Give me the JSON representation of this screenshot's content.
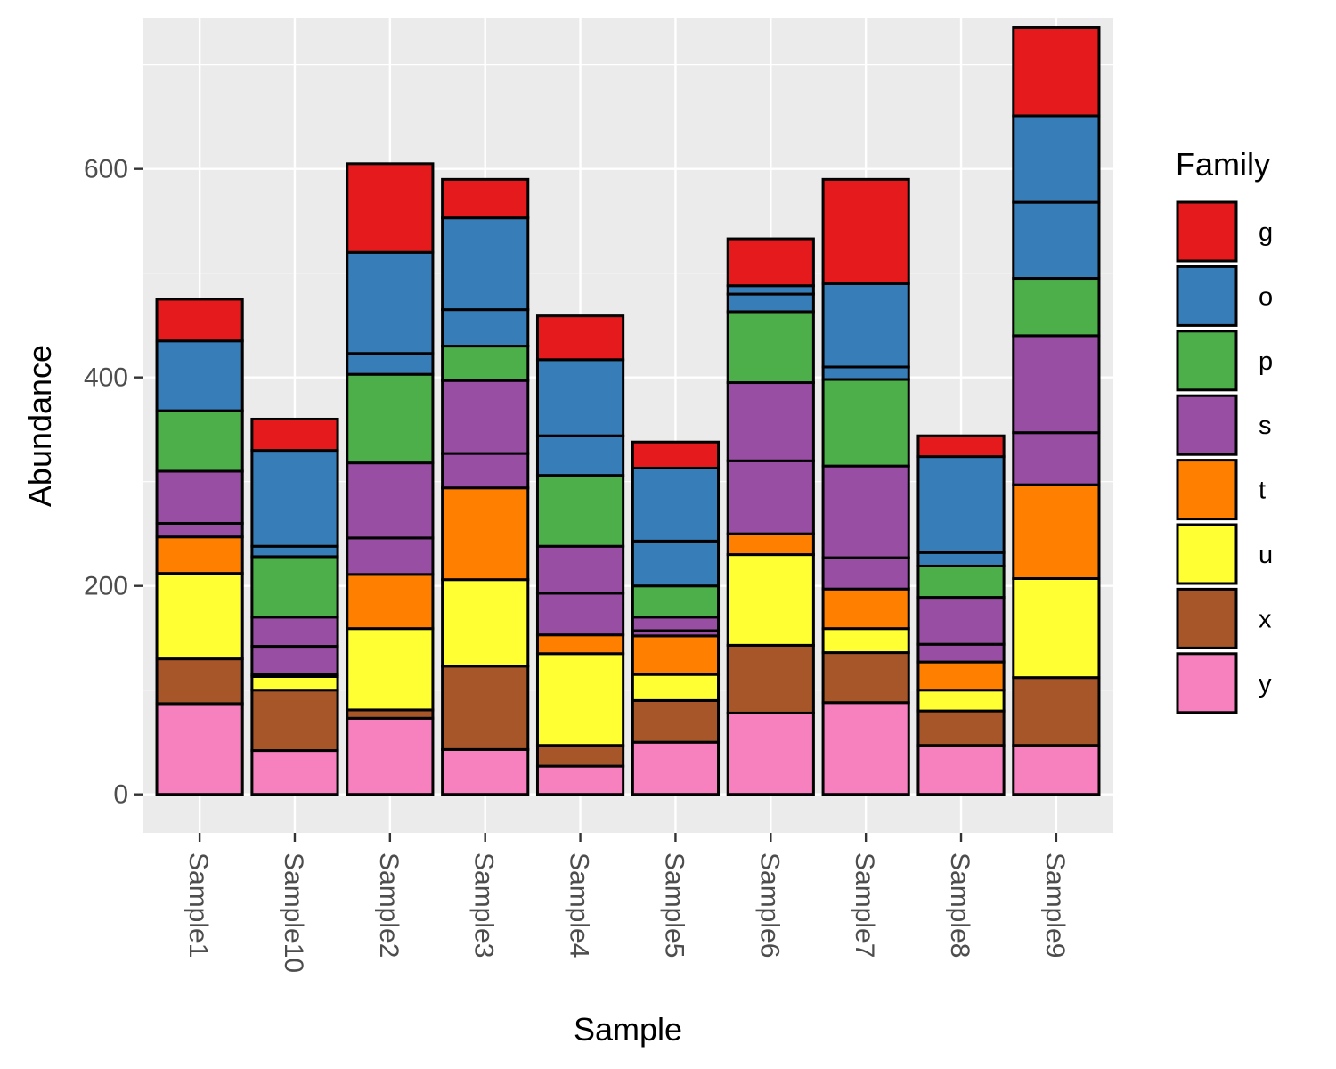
{
  "chart_data": {
    "type": "bar",
    "stacked": true,
    "xlabel": "Sample",
    "ylabel": "Abundance",
    "ylim": [
      -37,
      745
    ],
    "yticks": [
      0,
      200,
      400,
      600
    ],
    "grid": true,
    "legend": {
      "title": "Family",
      "placement": "right"
    },
    "categories": [
      "Sample1",
      "Sample10",
      "Sample2",
      "Sample3",
      "Sample4",
      "Sample5",
      "Sample6",
      "Sample7",
      "Sample8",
      "Sample9"
    ],
    "stack_order": [
      "y",
      "x",
      "u",
      "t",
      "s",
      "p",
      "o",
      "g"
    ],
    "series": [
      {
        "name": "g",
        "color": "#E41A1C",
        "segments": [
          [
            40
          ],
          [
            30
          ],
          [
            85
          ],
          [
            37
          ],
          [
            42
          ],
          [
            25
          ],
          [
            45
          ],
          [
            100
          ],
          [
            20
          ],
          [
            85
          ]
        ]
      },
      {
        "name": "o",
        "color": "#377EB8",
        "segments": [
          [
            67
          ],
          [
            10,
            92
          ],
          [
            20,
            97
          ],
          [
            35,
            88
          ],
          [
            38,
            73
          ],
          [
            43,
            70
          ],
          [
            17,
            8
          ],
          [
            12,
            80
          ],
          [
            13,
            92
          ],
          [
            73,
            83
          ]
        ]
      },
      {
        "name": "p",
        "color": "#4DAF4A",
        "segments": [
          [
            58
          ],
          [
            58
          ],
          [
            85
          ],
          [
            33
          ],
          [
            68
          ],
          [
            30
          ],
          [
            68
          ],
          [
            83
          ],
          [
            30
          ],
          [
            55
          ]
        ]
      },
      {
        "name": "s",
        "color": "#984EA3",
        "segments": [
          [
            13,
            50
          ],
          [
            27,
            28
          ],
          [
            35,
            72
          ],
          [
            33,
            70
          ],
          [
            40,
            45
          ],
          [
            5,
            13
          ],
          [
            70,
            75
          ],
          [
            30,
            88
          ],
          [
            17,
            45
          ],
          [
            50,
            93
          ]
        ]
      },
      {
        "name": "t",
        "color": "#FF7F00",
        "segments": [
          [
            35
          ],
          [
            2
          ],
          [
            52
          ],
          [
            88
          ],
          [
            18
          ],
          [
            37
          ],
          [
            20
          ],
          [
            38
          ],
          [
            27
          ],
          [
            90
          ]
        ]
      },
      {
        "name": "u",
        "color": "#FFFF33",
        "segments": [
          [
            82
          ],
          [
            13
          ],
          [
            78
          ],
          [
            83
          ],
          [
            88
          ],
          [
            25
          ],
          [
            87
          ],
          [
            23
          ],
          [
            20
          ],
          [
            95
          ]
        ]
      },
      {
        "name": "x",
        "color": "#A65628",
        "segments": [
          [
            43
          ],
          [
            58
          ],
          [
            8
          ],
          [
            80
          ],
          [
            20
          ],
          [
            40
          ],
          [
            65
          ],
          [
            48
          ],
          [
            33
          ],
          [
            65
          ]
        ]
      },
      {
        "name": "y",
        "color": "#F781BF",
        "segments": [
          [
            87
          ],
          [
            42
          ],
          [
            73
          ],
          [
            43
          ],
          [
            27
          ],
          [
            50
          ],
          [
            78
          ],
          [
            88
          ],
          [
            47
          ],
          [
            47
          ]
        ]
      }
    ]
  }
}
